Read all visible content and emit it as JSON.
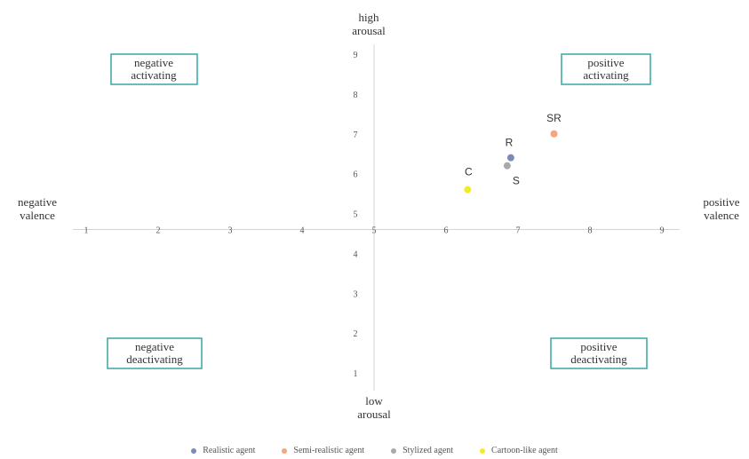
{
  "colors": {
    "realistic": "#7b8bb8",
    "semi_realistic": "#f2a77f",
    "stylized": "#aaaaaa",
    "cartoon": "#f2ea2a",
    "box_border": "#35a7a3"
  },
  "chart_data": {
    "type": "scatter",
    "title": "",
    "x_axis": {
      "ticks": [
        "1",
        "2",
        "3",
        "4",
        "5",
        "6",
        "7",
        "8",
        "9"
      ],
      "range": [
        1,
        9
      ],
      "left_label": [
        "negative",
        "valence"
      ],
      "right_label": [
        "positive",
        "valence"
      ]
    },
    "y_axis": {
      "ticks": [
        "1",
        "2",
        "3",
        "4",
        "5",
        "6",
        "7",
        "8",
        "9"
      ],
      "range": [
        1,
        9
      ],
      "top_label": [
        "high",
        "arousal"
      ],
      "bottom_label": [
        "low",
        "arousal"
      ]
    },
    "quadrants": {
      "top_left": [
        "negative",
        "activating"
      ],
      "top_right": [
        "positive",
        "activating"
      ],
      "bottom_left": [
        "negative",
        "deactivating"
      ],
      "bottom_right": [
        "positive",
        "deactivating"
      ]
    },
    "series": [
      {
        "name": "Realistic agent",
        "label": "R",
        "x": 6.9,
        "y": 6.4,
        "color_key": "realistic"
      },
      {
        "name": "Semi-realistic agent",
        "label": "SR",
        "x": 7.5,
        "y": 7.0,
        "color_key": "semi_realistic"
      },
      {
        "name": "Stylized agent",
        "label": "S",
        "x": 6.85,
        "y": 6.2,
        "color_key": "stylized"
      },
      {
        "name": "Cartoon-like agent",
        "label": "C",
        "x": 6.3,
        "y": 5.6,
        "color_key": "cartoon"
      }
    ],
    "grid": false,
    "legend_position": "bottom"
  }
}
